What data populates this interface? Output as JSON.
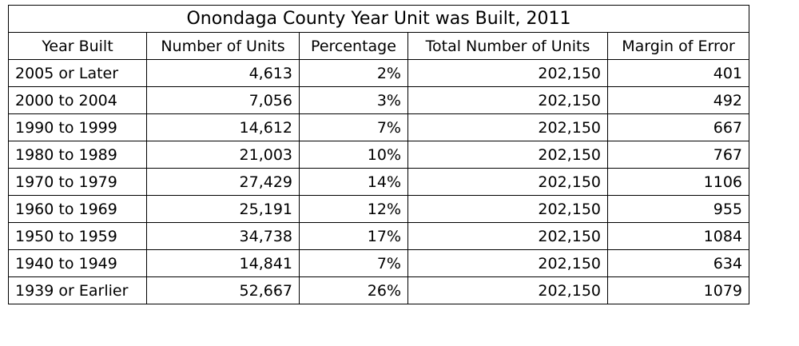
{
  "title": "Onondaga County Year Unit was Built, 2011",
  "headers": [
    "Year Built",
    "Number of Units",
    "Percentage",
    "Total Number of Units",
    "Margin of Error"
  ],
  "rows": [
    [
      "2005 or Later",
      "4,613",
      "2%",
      "202,150",
      "401"
    ],
    [
      "2000 to 2004",
      "7,056",
      "3%",
      "202,150",
      "492"
    ],
    [
      "1990 to 1999",
      "14,612",
      "7%",
      "202,150",
      "667"
    ],
    [
      "1980 to 1989",
      "21,003",
      "10%",
      "202,150",
      "767"
    ],
    [
      "1970 to 1979",
      "27,429",
      "14%",
      "202,150",
      "1106"
    ],
    [
      "1960 to 1969",
      "25,191",
      "12%",
      "202,150",
      "955"
    ],
    [
      "1950 to 1959",
      "34,738",
      "17%",
      "202,150",
      "1084"
    ],
    [
      "1940 to 1949",
      "14,841",
      "7%",
      "202,150",
      "634"
    ],
    [
      "1939 or Earlier",
      "52,667",
      "26%",
      "202,150",
      "1079"
    ]
  ]
}
